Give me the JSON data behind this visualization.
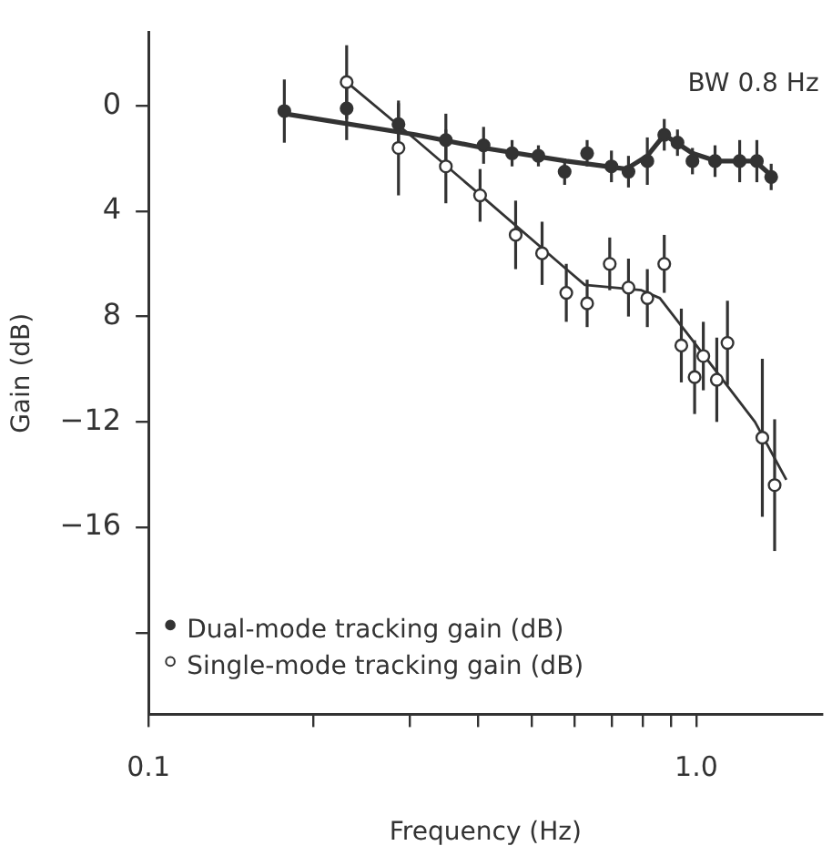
{
  "chart_data": {
    "type": "scatter",
    "xlabel": "Frequency (Hz)",
    "ylabel": "Gain (dB)",
    "log": "x",
    "grid": false,
    "legend": "bottom left",
    "marker": "circle",
    "xlim": [
      0.1,
      1.7
    ],
    "xticks": [
      {
        "value": 0.1,
        "label": "0.1"
      },
      {
        "value": 0.2,
        "label": null
      },
      {
        "value": 0.3,
        "label": null
      },
      {
        "value": 0.4,
        "label": null
      },
      {
        "value": 0.5,
        "label": null
      },
      {
        "value": 0.6,
        "label": null
      },
      {
        "value": 0.7,
        "label": null
      },
      {
        "value": 0.8,
        "label": null
      },
      {
        "value": 0.9,
        "label": null
      },
      {
        "value": 1,
        "label": "1.0"
      }
    ],
    "ylim": [
      -23.1,
      2.8
    ],
    "yticks": [
      0,
      {
        "value": -4,
        "label": "4"
      },
      {
        "value": -8,
        "label": "8"
      },
      -12,
      -16,
      {
        "value": -20,
        "label": null
      }
    ],
    "annotations": [
      "BW 0.8 Hz"
    ],
    "series": [
      {
        "name": "Dual-mode tracking gain (dB)",
        "color": "#333333",
        "x": [
          0.177,
          0.23,
          0.286,
          0.349,
          0.409,
          0.461,
          0.515,
          0.575,
          0.632,
          0.7,
          0.752,
          0.814,
          0.874,
          0.924,
          0.984,
          1.082,
          1.2,
          1.29,
          1.37
        ],
        "values": [
          -0.2,
          -0.1,
          -0.7,
          -1.3,
          -1.5,
          -1.8,
          -1.9,
          -2.5,
          -1.8,
          -2.3,
          -2.5,
          -2.1,
          -1.1,
          -1.4,
          -2.1,
          -2.1,
          -2.1,
          -2.1,
          -2.7
        ],
        "errors": [
          1.2,
          1.2,
          0.8,
          1.0,
          0.7,
          0.5,
          0.4,
          0.5,
          0.5,
          0.6,
          0.6,
          0.9,
          0.6,
          0.5,
          0.5,
          0.6,
          0.8,
          0.8,
          0.5
        ]
      },
      {
        "name": "Single-mode tracking gain (dB)",
        "color": "#333333",
        "x": [
          0.23,
          0.286,
          0.349,
          0.403,
          0.468,
          0.523,
          0.579,
          0.632,
          0.695,
          0.752,
          0.814,
          0.874,
          0.939,
          0.993,
          1.03,
          1.09,
          1.14,
          1.32,
          1.39
        ],
        "values": [
          0.9,
          -1.6,
          -2.3,
          -3.4,
          -4.9,
          -5.6,
          -7.1,
          -7.5,
          -6.0,
          -6.9,
          -7.3,
          -6.0,
          -9.1,
          -10.3,
          -9.5,
          -10.4,
          -9.0,
          -12.6,
          -14.4
        ],
        "errors": [
          1.4,
          1.8,
          1.4,
          1.0,
          1.3,
          1.2,
          1.1,
          0.9,
          1.0,
          1.1,
          1.1,
          1.1,
          1.4,
          1.4,
          1.3,
          1.6,
          1.6,
          3.0,
          2.5
        ]
      },
      {
        "type": "line",
        "color": "#333333",
        "marker": "none",
        "x": [
          0.177,
          0.308,
          0.409,
          0.579,
          0.745,
          0.814,
          0.874,
          0.984,
          1.09,
          1.28,
          1.38
        ],
        "values": [
          -0.3,
          -1.1,
          -1.6,
          -2.1,
          -2.4,
          -1.9,
          -1.1,
          -1.8,
          -2.1,
          -2.1,
          -2.7
        ]
      },
      {
        "type": "line",
        "color": "#333333",
        "marker": "none",
        "x": [
          0.23,
          0.308,
          0.399,
          0.579,
          0.626,
          0.794,
          0.858,
          0.984,
          1.28,
          1.46
        ],
        "values": [
          0.9,
          -1.3,
          -3.3,
          -6.2,
          -6.8,
          -7.0,
          -7.3,
          -8.9,
          -12.0,
          -14.2
        ]
      }
    ]
  }
}
